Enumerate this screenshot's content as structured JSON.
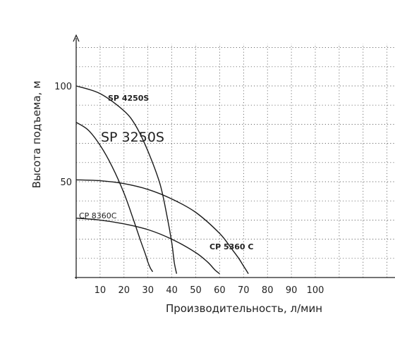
{
  "chart_data": {
    "type": "line",
    "xlabel": "Производительность, л/мин",
    "ylabel": "Высота подъема, м",
    "xlim": [
      0,
      150
    ],
    "ylim": [
      0,
      125
    ],
    "x_ticks": [
      10,
      20,
      30,
      40,
      50,
      60,
      70,
      80,
      90,
      100
    ],
    "y_ticks": [
      50,
      100
    ],
    "grid": true,
    "series": [
      {
        "name": "SP 4250S",
        "label_style": "bold",
        "x": [
          0,
          10,
          20,
          25,
          30,
          35,
          38,
          40,
          41,
          42
        ],
        "y": [
          100,
          96,
          87,
          79,
          66,
          49,
          32,
          18,
          8,
          2
        ]
      },
      {
        "name": "SP 3250S",
        "label_style": "large",
        "x": [
          0,
          5,
          10,
          15,
          20,
          24,
          27,
          29,
          30,
          31,
          32
        ],
        "y": [
          81,
          77,
          69,
          58,
          44,
          30,
          19,
          12,
          8,
          5,
          3
        ]
      },
      {
        "name": "CP 5360 C",
        "label_style": "bold",
        "x": [
          0,
          10,
          20,
          30,
          40,
          50,
          60,
          65,
          68,
          70,
          72
        ],
        "y": [
          51,
          50.5,
          49,
          46,
          41,
          34,
          23,
          15,
          10,
          6,
          2
        ]
      },
      {
        "name": "CP 8360C",
        "label_style": "normal",
        "x": [
          0,
          10,
          20,
          30,
          40,
          50,
          55,
          58,
          60
        ],
        "y": [
          31,
          30,
          28,
          25,
          20,
          13,
          8,
          4,
          2
        ]
      }
    ]
  }
}
